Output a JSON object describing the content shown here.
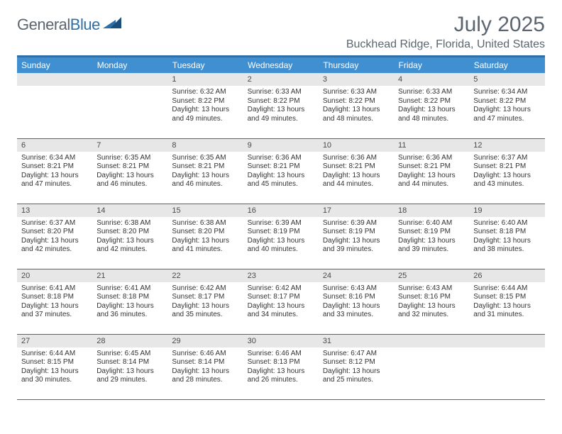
{
  "brand": {
    "part1": "General",
    "part2": "Blue"
  },
  "title": "July 2025",
  "location": "Buckhead Ridge, Florida, United States",
  "colors": {
    "accent": "#3f8fd1",
    "rule": "#2f6fa7",
    "header_text": "#5b6670",
    "daybar_bg": "#e7e7e7",
    "body_text": "#333333",
    "bg": "#ffffff"
  },
  "weekdays": [
    "Sunday",
    "Monday",
    "Tuesday",
    "Wednesday",
    "Thursday",
    "Friday",
    "Saturday"
  ],
  "leading_blanks": 2,
  "trailing_blanks": 2,
  "days": [
    {
      "n": "1",
      "sr": "6:32 AM",
      "ss": "8:22 PM",
      "dl": "13 hours and 49 minutes."
    },
    {
      "n": "2",
      "sr": "6:33 AM",
      "ss": "8:22 PM",
      "dl": "13 hours and 49 minutes."
    },
    {
      "n": "3",
      "sr": "6:33 AM",
      "ss": "8:22 PM",
      "dl": "13 hours and 48 minutes."
    },
    {
      "n": "4",
      "sr": "6:33 AM",
      "ss": "8:22 PM",
      "dl": "13 hours and 48 minutes."
    },
    {
      "n": "5",
      "sr": "6:34 AM",
      "ss": "8:22 PM",
      "dl": "13 hours and 47 minutes."
    },
    {
      "n": "6",
      "sr": "6:34 AM",
      "ss": "8:21 PM",
      "dl": "13 hours and 47 minutes."
    },
    {
      "n": "7",
      "sr": "6:35 AM",
      "ss": "8:21 PM",
      "dl": "13 hours and 46 minutes."
    },
    {
      "n": "8",
      "sr": "6:35 AM",
      "ss": "8:21 PM",
      "dl": "13 hours and 46 minutes."
    },
    {
      "n": "9",
      "sr": "6:36 AM",
      "ss": "8:21 PM",
      "dl": "13 hours and 45 minutes."
    },
    {
      "n": "10",
      "sr": "6:36 AM",
      "ss": "8:21 PM",
      "dl": "13 hours and 44 minutes."
    },
    {
      "n": "11",
      "sr": "6:36 AM",
      "ss": "8:21 PM",
      "dl": "13 hours and 44 minutes."
    },
    {
      "n": "12",
      "sr": "6:37 AM",
      "ss": "8:21 PM",
      "dl": "13 hours and 43 minutes."
    },
    {
      "n": "13",
      "sr": "6:37 AM",
      "ss": "8:20 PM",
      "dl": "13 hours and 42 minutes."
    },
    {
      "n": "14",
      "sr": "6:38 AM",
      "ss": "8:20 PM",
      "dl": "13 hours and 42 minutes."
    },
    {
      "n": "15",
      "sr": "6:38 AM",
      "ss": "8:20 PM",
      "dl": "13 hours and 41 minutes."
    },
    {
      "n": "16",
      "sr": "6:39 AM",
      "ss": "8:19 PM",
      "dl": "13 hours and 40 minutes."
    },
    {
      "n": "17",
      "sr": "6:39 AM",
      "ss": "8:19 PM",
      "dl": "13 hours and 39 minutes."
    },
    {
      "n": "18",
      "sr": "6:40 AM",
      "ss": "8:19 PM",
      "dl": "13 hours and 39 minutes."
    },
    {
      "n": "19",
      "sr": "6:40 AM",
      "ss": "8:18 PM",
      "dl": "13 hours and 38 minutes."
    },
    {
      "n": "20",
      "sr": "6:41 AM",
      "ss": "8:18 PM",
      "dl": "13 hours and 37 minutes."
    },
    {
      "n": "21",
      "sr": "6:41 AM",
      "ss": "8:18 PM",
      "dl": "13 hours and 36 minutes."
    },
    {
      "n": "22",
      "sr": "6:42 AM",
      "ss": "8:17 PM",
      "dl": "13 hours and 35 minutes."
    },
    {
      "n": "23",
      "sr": "6:42 AM",
      "ss": "8:17 PM",
      "dl": "13 hours and 34 minutes."
    },
    {
      "n": "24",
      "sr": "6:43 AM",
      "ss": "8:16 PM",
      "dl": "13 hours and 33 minutes."
    },
    {
      "n": "25",
      "sr": "6:43 AM",
      "ss": "8:16 PM",
      "dl": "13 hours and 32 minutes."
    },
    {
      "n": "26",
      "sr": "6:44 AM",
      "ss": "8:15 PM",
      "dl": "13 hours and 31 minutes."
    },
    {
      "n": "27",
      "sr": "6:44 AM",
      "ss": "8:15 PM",
      "dl": "13 hours and 30 minutes."
    },
    {
      "n": "28",
      "sr": "6:45 AM",
      "ss": "8:14 PM",
      "dl": "13 hours and 29 minutes."
    },
    {
      "n": "29",
      "sr": "6:46 AM",
      "ss": "8:14 PM",
      "dl": "13 hours and 28 minutes."
    },
    {
      "n": "30",
      "sr": "6:46 AM",
      "ss": "8:13 PM",
      "dl": "13 hours and 26 minutes."
    },
    {
      "n": "31",
      "sr": "6:47 AM",
      "ss": "8:12 PM",
      "dl": "13 hours and 25 minutes."
    }
  ],
  "labels": {
    "sunrise": "Sunrise:",
    "sunset": "Sunset:",
    "daylight": "Daylight:"
  }
}
